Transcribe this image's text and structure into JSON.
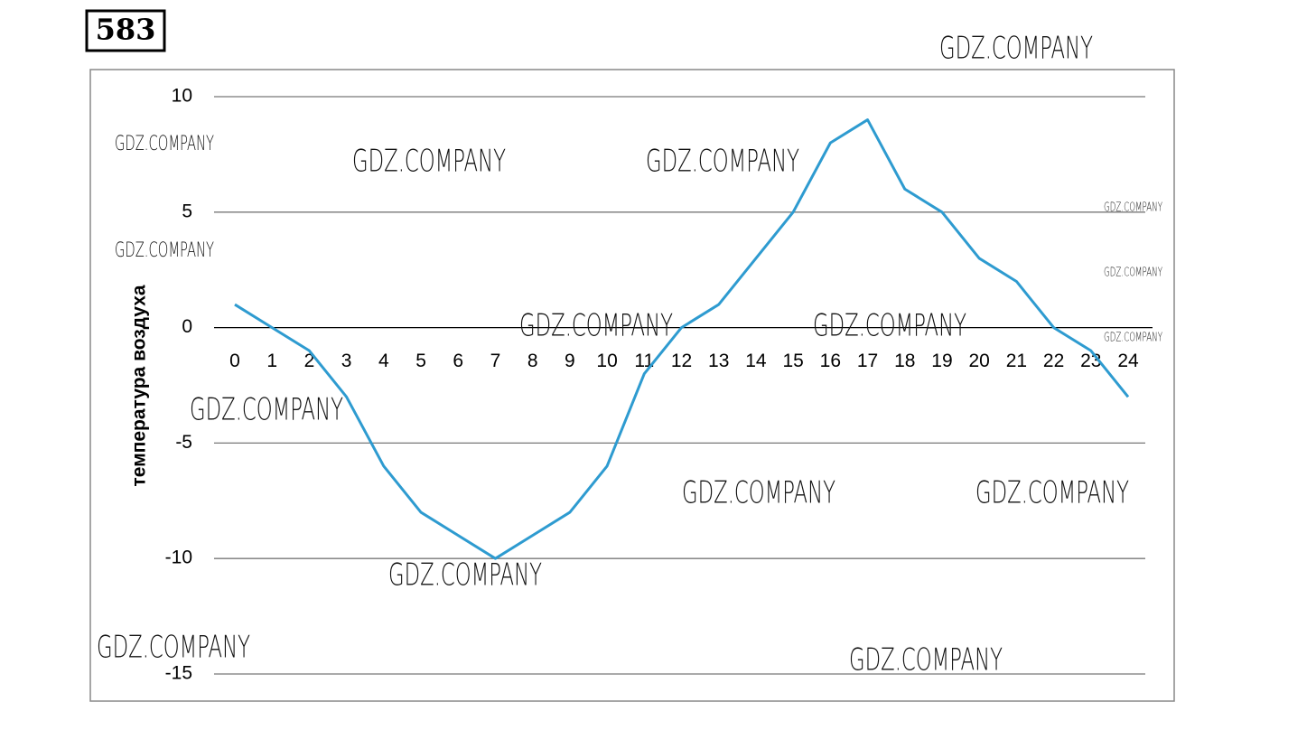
{
  "problem_number": "583",
  "watermarks": [
    "GDZ.COMPANY",
    "GDZ.COMPANY",
    "GDZ.COMPANY",
    "GDZ.COMPANY",
    "GDZ.COMPANY",
    "GDZ.COMPANY",
    "GDZ.COMPANY",
    "GDZ.COMPANY",
    "GDZ.COMPANY",
    "GDZ.COMPANY",
    "GDZ.COMPANY",
    "GDZ.COMPANY",
    "GDZ.COMPANY",
    "GDZ.COMPANY",
    "GDZ.COMPANY",
    "GDZ.COMPANY"
  ],
  "chart_data": {
    "type": "line",
    "y_label": "температура воздуха",
    "x": [
      0,
      1,
      2,
      3,
      4,
      5,
      6,
      7,
      8,
      9,
      10,
      11,
      12,
      13,
      14,
      15,
      16,
      17,
      18,
      19,
      20,
      21,
      22,
      23,
      24
    ],
    "series": [
      {
        "color": "#2e9bd0",
        "values": [
          1,
          0,
          -1,
          -3,
          -6,
          -8,
          -9,
          -10,
          -9,
          -8,
          -6,
          -2,
          0,
          1,
          3,
          5,
          8,
          9,
          6,
          5,
          3,
          2,
          0,
          -1,
          -3
        ]
      }
    ],
    "xlim": [
      0,
      24
    ],
    "xticks": [
      0,
      1,
      2,
      3,
      4,
      5,
      6,
      7,
      8,
      9,
      10,
      11,
      12,
      13,
      14,
      15,
      16,
      17,
      18,
      19,
      20,
      21,
      22,
      23,
      24
    ],
    "ylim": [
      -15,
      10
    ],
    "yticks": [
      -15,
      -10,
      -5,
      0,
      5,
      10
    ],
    "grid": true
  }
}
